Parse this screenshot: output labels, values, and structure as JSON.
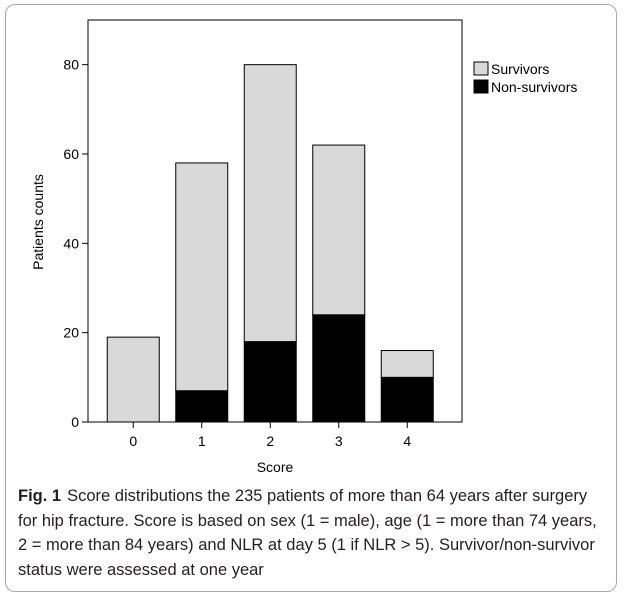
{
  "chart_data": {
    "type": "bar",
    "stacked": true,
    "categories": [
      "0",
      "1",
      "2",
      "3",
      "4"
    ],
    "series": [
      {
        "name": "Non-survivors",
        "values": [
          0,
          7,
          18,
          24,
          10
        ],
        "color": "#000000"
      },
      {
        "name": "Survivors",
        "values": [
          19,
          51,
          62,
          38,
          6
        ],
        "color": "#d9d9d9"
      }
    ],
    "legend": [
      "Survivors",
      "Non-survivors"
    ],
    "legend_position": "top-right",
    "xlabel": "Score",
    "ylabel": "Patients counts",
    "ylim": [
      0,
      90
    ],
    "yticks": [
      0,
      20,
      40,
      60,
      80
    ],
    "grid": false
  },
  "caption": {
    "label": "Fig. 1",
    "text": "Score distributions the 235 patients of more than 64 years after surgery for hip fracture. Score is based on sex (1 = male), age (1 = more than 74 years, 2 = more than 84 years) and NLR at day 5 (1 if NLR > 5). Survivor/non-survivor status were assessed at one year"
  }
}
